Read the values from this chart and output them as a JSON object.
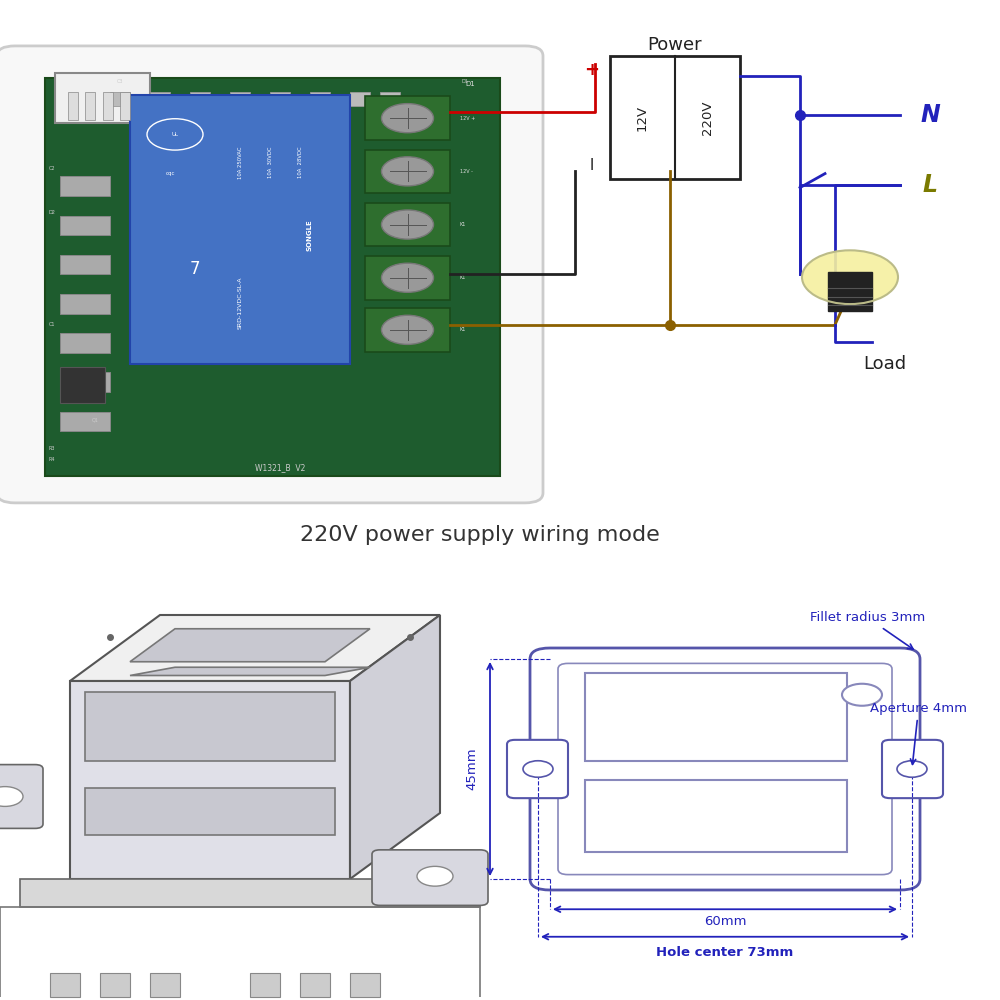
{
  "bg_color": "#ffffff",
  "title_top": "220V power supply wiring mode",
  "title_fontsize": 16,
  "title_color": "#333333",
  "wiring_labels": {
    "power": "Power",
    "N": "N",
    "L": "L",
    "load": "Load",
    "12V": "12V",
    "220V": "220V",
    "plus": "+",
    "minus": "l"
  },
  "dim_labels": {
    "fillet": "Fillet radius 3mm",
    "aperture": "Aperture 4mm",
    "width": "60mm",
    "hole_center": "Hole center 73mm",
    "height_dim": "45mm"
  },
  "colors": {
    "blue_label": "#2222bb",
    "red_wire": "#cc0000",
    "blue_wire": "#2222bb",
    "brown_wire": "#8B6000",
    "box_border": "#222222",
    "dim_line": "#2222bb",
    "relay_blue": "#4472c4",
    "pcb_green": "#1e5c2e",
    "connector_green": "#2e6e2e",
    "housing_white": "#f0f0f0",
    "housing_border": "#bbbbbb",
    "light_gray": "#c8c8c8",
    "dark_gray": "#888888",
    "sketch_fill": "#e0e0e8",
    "sketch_border": "#555555",
    "dim_diagram_fill": "#ffffff",
    "dim_diagram_border": "#5555aa",
    "window_fill": "#e8e8e8",
    "bulb_yellow": "#f5f0a0",
    "bulb_dark": "#333333"
  }
}
